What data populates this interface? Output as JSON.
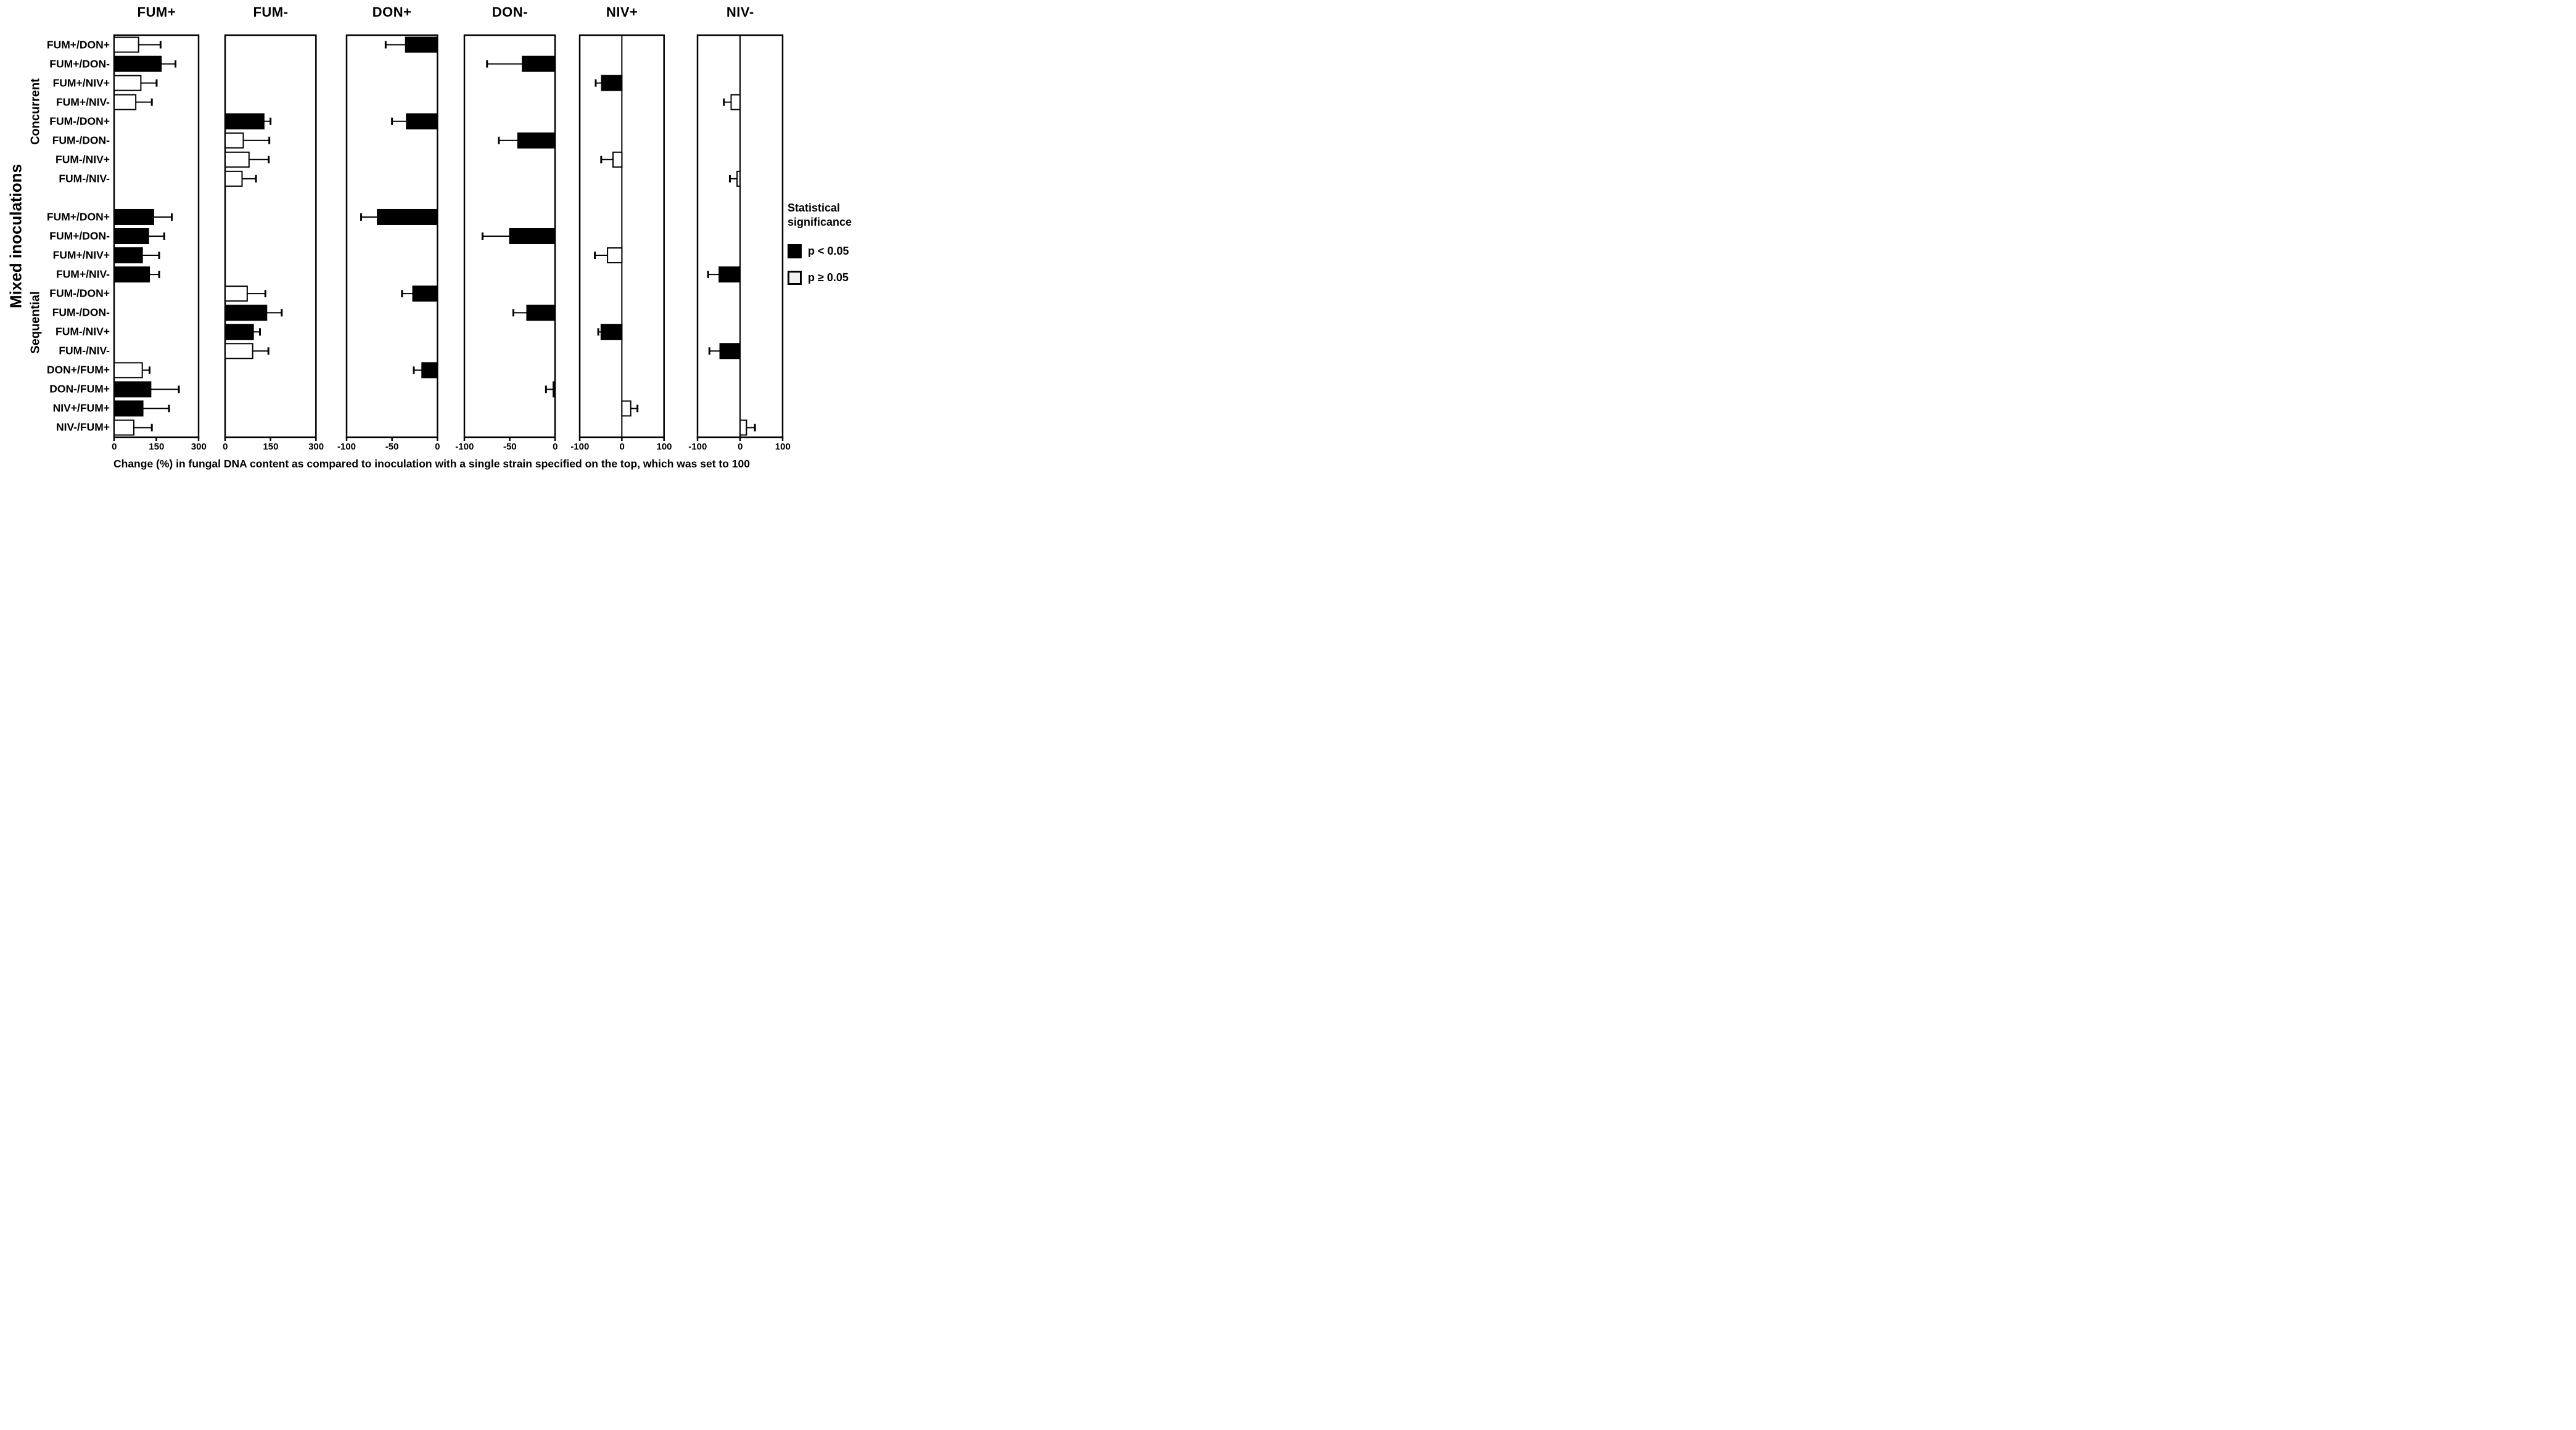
{
  "figure_colors": {
    "foreground": "#000000",
    "background": "#ffffff",
    "significant_fill": "#000000",
    "not_significant_fill": "#ffffff",
    "legend_ns_fill": "#f0f0f0"
  },
  "legend": {
    "title": "Statistical\nsignificance",
    "items": [
      {
        "label": "p < 0.05",
        "fill": "#000000",
        "meaning": "significant"
      },
      {
        "label": "p ≥ 0.05",
        "fill": "#f0f0f0",
        "meaning": "not significant"
      }
    ]
  },
  "chart_data": {
    "type": "bar",
    "orientation": "horizontal",
    "ylabel": "Mixed inoculations",
    "xlabel": "Change (%) in fungal DNA content as compared to inoculation with a single strain specified on the top, which was set to 100",
    "grid": false,
    "error_bars": true,
    "row_groups": [
      {
        "label": "Concurrent",
        "first_row": 0,
        "last_row": 7
      },
      {
        "label": "Sequential",
        "first_row": 8,
        "last_row": 19
      }
    ],
    "categories": [
      "FUM+/DON+",
      "FUM+/DON-",
      "FUM+/NIV+",
      "FUM+/NIV-",
      "FUM-/DON+",
      "FUM-/DON-",
      "FUM-/NIV+",
      "FUM-/NIV-",
      "FUM+/DON+",
      "FUM+/DON-",
      "FUM+/NIV+",
      "FUM+/NIV-",
      "FUM-/DON+",
      "FUM-/DON-",
      "FUM-/NIV+",
      "FUM-/NIV-",
      "DON+/FUM+",
      "DON-/FUM+",
      "NIV+/FUM+",
      "NIV-/FUM+"
    ],
    "panels": [
      {
        "title": "FUM+",
        "xlim": [
          0,
          300
        ],
        "ticks": [
          0,
          150,
          300
        ],
        "bars": [
          {
            "row": 0,
            "value": 87,
            "error_end": 165,
            "significant": false
          },
          {
            "row": 1,
            "value": 167,
            "error_end": 218,
            "significant": true
          },
          {
            "row": 2,
            "value": 95,
            "error_end": 151,
            "significant": false
          },
          {
            "row": 3,
            "value": 77,
            "error_end": 134,
            "significant": false
          },
          {
            "row": 8,
            "value": 140,
            "error_end": 205,
            "significant": true
          },
          {
            "row": 9,
            "value": 122,
            "error_end": 178,
            "significant": true
          },
          {
            "row": 10,
            "value": 100,
            "error_end": 160,
            "significant": true
          },
          {
            "row": 11,
            "value": 125,
            "error_end": 160,
            "significant": true
          },
          {
            "row": 16,
            "value": 100,
            "error_end": 126,
            "significant": false
          },
          {
            "row": 17,
            "value": 130,
            "error_end": 230,
            "significant": true
          },
          {
            "row": 18,
            "value": 102,
            "error_end": 195,
            "significant": true
          },
          {
            "row": 19,
            "value": 70,
            "error_end": 134,
            "significant": false
          }
        ]
      },
      {
        "title": "FUM-",
        "xlim": [
          0,
          300
        ],
        "ticks": [
          0,
          150,
          300
        ],
        "bars": [
          {
            "row": 4,
            "value": 128,
            "error_end": 150,
            "significant": true
          },
          {
            "row": 5,
            "value": 60,
            "error_end": 146,
            "significant": false
          },
          {
            "row": 6,
            "value": 79,
            "error_end": 144,
            "significant": false
          },
          {
            "row": 7,
            "value": 56,
            "error_end": 102,
            "significant": false
          },
          {
            "row": 12,
            "value": 73,
            "error_end": 133,
            "significant": false
          },
          {
            "row": 13,
            "value": 137,
            "error_end": 187,
            "significant": true
          },
          {
            "row": 14,
            "value": 93,
            "error_end": 115,
            "significant": true
          },
          {
            "row": 15,
            "value": 91,
            "error_end": 143,
            "significant": false
          }
        ]
      },
      {
        "title": "DON+",
        "xlim": [
          -100,
          0
        ],
        "ticks": [
          -100,
          -50,
          0
        ],
        "bars": [
          {
            "row": 0,
            "value": -35,
            "error_end": -57,
            "significant": true
          },
          {
            "row": 4,
            "value": -34,
            "error_end": -50,
            "significant": true
          },
          {
            "row": 8,
            "value": -66,
            "error_end": -84,
            "significant": true
          },
          {
            "row": 12,
            "value": -27,
            "error_end": -39,
            "significant": true
          },
          {
            "row": 16,
            "value": -17,
            "error_end": -26,
            "significant": true
          }
        ]
      },
      {
        "title": "DON-",
        "xlim": [
          -100,
          0
        ],
        "ticks": [
          -100,
          -50,
          0
        ],
        "bars": [
          {
            "row": 1,
            "value": -36,
            "error_end": -75,
            "significant": true
          },
          {
            "row": 5,
            "value": -41,
            "error_end": -62,
            "significant": true
          },
          {
            "row": 9,
            "value": -50,
            "error_end": -80,
            "significant": true
          },
          {
            "row": 13,
            "value": -31,
            "error_end": -46,
            "significant": true
          },
          {
            "row": 17,
            "value": -2,
            "error_end": -10,
            "significant": true
          }
        ]
      },
      {
        "title": "NIV+",
        "xlim": [
          -100,
          100
        ],
        "ticks": [
          -100,
          0,
          100
        ],
        "bars": [
          {
            "row": 2,
            "value": -48,
            "error_end": -62,
            "significant": true
          },
          {
            "row": 6,
            "value": -21,
            "error_end": -49,
            "significant": false
          },
          {
            "row": 10,
            "value": -34,
            "error_end": -64,
            "significant": false
          },
          {
            "row": 14,
            "value": -49,
            "error_end": -56,
            "significant": true
          },
          {
            "row": 18,
            "value": 21,
            "error_end": 37,
            "significant": false
          }
        ]
      },
      {
        "title": "NIV-",
        "xlim": [
          -100,
          100
        ],
        "ticks": [
          -100,
          0,
          100
        ],
        "bars": [
          {
            "row": 3,
            "value": -21,
            "error_end": -38,
            "significant": false
          },
          {
            "row": 7,
            "value": -7,
            "error_end": -24,
            "significant": false
          },
          {
            "row": 11,
            "value": -49,
            "error_end": -75,
            "significant": true
          },
          {
            "row": 15,
            "value": -47,
            "error_end": -72,
            "significant": true
          },
          {
            "row": 19,
            "value": 15,
            "error_end": 35,
            "significant": false
          }
        ]
      }
    ]
  }
}
